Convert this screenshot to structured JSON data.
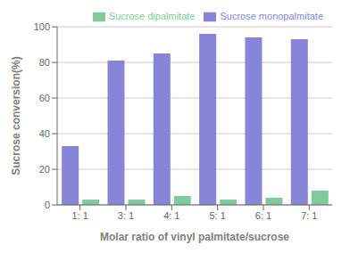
{
  "chart_data": {
    "type": "bar",
    "categories": [
      "1: 1",
      "3: 1",
      "4: 1",
      "5: 1",
      "6: 1",
      "7: 1"
    ],
    "series": [
      {
        "name": "Sucrose monopalmitate",
        "color": "#8884d8",
        "values": [
          33,
          81,
          85,
          96,
          94,
          93
        ]
      },
      {
        "name": "Sucrose dipalmitate",
        "color": "#82ca9d",
        "values": [
          3,
          3,
          5,
          3,
          4,
          8
        ]
      }
    ],
    "xlabel": "Molar ratio of vinyl palmitate/sucrose",
    "ylabel": "Sucrose conversion(%)",
    "ylim": [
      0,
      100
    ],
    "yticks": [
      0,
      20,
      40,
      60,
      80,
      100
    ],
    "grid": true,
    "legend": "upper right"
  }
}
